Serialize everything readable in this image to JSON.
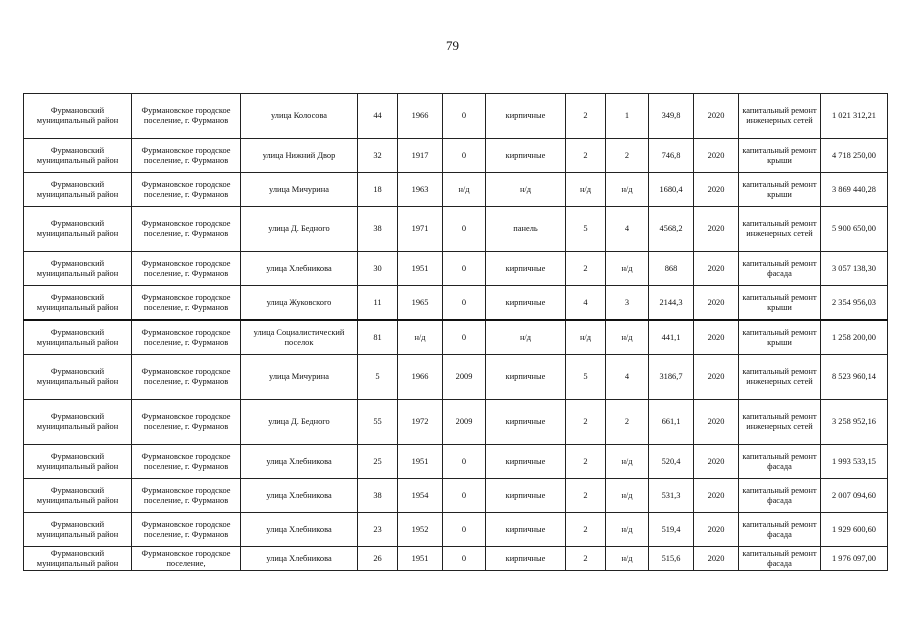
{
  "page_number": "79",
  "rows": [
    {
      "district": "Фурмановский муниципальный район",
      "settlement": "Фурмановское городское поселение, г. Фурманов",
      "street": "улица Колосова",
      "house": "44",
      "year_built": "1966",
      "year_renov": "0",
      "material": "кирпичные",
      "floors": "2",
      "entrances": "1",
      "area": "349,8",
      "plan_year": "2020",
      "work": "капитальный ремонт инженерных сетей",
      "cost": "1 021 312,21",
      "tall": true
    },
    {
      "district": "Фурмановский муниципальный район",
      "settlement": "Фурмановское городское поселение, г. Фурманов",
      "street": "улица Нижний Двор",
      "house": "32",
      "year_built": "1917",
      "year_renov": "0",
      "material": "кирпичные",
      "floors": "2",
      "entrances": "2",
      "area": "746,8",
      "plan_year": "2020",
      "work": "капитальный ремонт крыши",
      "cost": "4 718 250,00"
    },
    {
      "district": "Фурмановский муниципальный район",
      "settlement": "Фурмановское городское поселение, г. Фурманов",
      "street": "улица Мичурина",
      "house": "18",
      "year_built": "1963",
      "year_renov": "н/д",
      "material": "н/д",
      "floors": "н/д",
      "entrances": "н/д",
      "area": "1680,4",
      "plan_year": "2020",
      "work": "капитальный ремонт крыши",
      "cost": "3 869 440,28"
    },
    {
      "district": "Фурмановский муниципальный район",
      "settlement": "Фурмановское городское поселение, г. Фурманов",
      "street": "улица Д. Бедного",
      "house": "38",
      "year_built": "1971",
      "year_renov": "0",
      "material": "панель",
      "floors": "5",
      "entrances": "4",
      "area": "4568,2",
      "plan_year": "2020",
      "work": "капитальный ремонт инженерных сетей",
      "cost": "5 900 650,00",
      "tall": true
    },
    {
      "district": "Фурмановский муниципальный район",
      "settlement": "Фурмановское городское поселение, г. Фурманов",
      "street": "улица Хлебникова",
      "house": "30",
      "year_built": "1951",
      "year_renov": "0",
      "material": "кирпичные",
      "floors": "2",
      "entrances": "н/д",
      "area": "868",
      "plan_year": "2020",
      "work": "капитальный ремонт фасада",
      "cost": "3 057 138,30"
    },
    {
      "district": "Фурмановский муниципальный район",
      "settlement": "Фурмановское городское поселение, г. Фурманов",
      "street": "улица Жуковского",
      "house": "11",
      "year_built": "1965",
      "year_renov": "0",
      "material": "кирпичные",
      "floors": "4",
      "entrances": "3",
      "area": "2144,3",
      "plan_year": "2020",
      "work": "капитальный ремонт крыши",
      "cost": "2 354 956,03"
    },
    {
      "district": "Фурмановский муниципальный район",
      "settlement": "Фурмановское городское поселение, г. Фурманов",
      "street": "улица Социалистический поселок",
      "house": "81",
      "year_built": "н/д",
      "year_renov": "0",
      "material": "н/д",
      "floors": "н/д",
      "entrances": "н/д",
      "area": "441,1",
      "plan_year": "2020",
      "work": "капитальный ремонт крыши",
      "cost": "1 258 200,00",
      "thick": true
    },
    {
      "district": "Фурмановский муниципальный район",
      "settlement": "Фурмановское городское поселение, г. Фурманов",
      "street": "улица Мичурина",
      "house": "5",
      "year_built": "1966",
      "year_renov": "2009",
      "material": "кирпичные",
      "floors": "5",
      "entrances": "4",
      "area": "3186,7",
      "plan_year": "2020",
      "work": "капитальный ремонт инженерных сетей",
      "cost": "8 523 960,14",
      "tall": true
    },
    {
      "district": "Фурмановский муниципальный район",
      "settlement": "Фурмановское городское поселение, г. Фурманов",
      "street": "улица Д. Бедного",
      "house": "55",
      "year_built": "1972",
      "year_renov": "2009",
      "material": "кирпичные",
      "floors": "2",
      "entrances": "2",
      "area": "661,1",
      "plan_year": "2020",
      "work": "капитальный ремонт инженерных сетей",
      "cost": "3 258 952,16",
      "tall": true
    },
    {
      "district": "Фурмановский муниципальный район",
      "settlement": "Фурмановское городское поселение, г. Фурманов",
      "street": "улица Хлебникова",
      "house": "25",
      "year_built": "1951",
      "year_renov": "0",
      "material": "кирпичные",
      "floors": "2",
      "entrances": "н/д",
      "area": "520,4",
      "plan_year": "2020",
      "work": "капитальный ремонт фасада",
      "cost": "1 993 533,15"
    },
    {
      "district": "Фурмановский муниципальный район",
      "settlement": "Фурмановское городское поселение, г. Фурманов",
      "street": "улица Хлебникова",
      "house": "38",
      "year_built": "1954",
      "year_renov": "0",
      "material": "кирпичные",
      "floors": "2",
      "entrances": "н/д",
      "area": "531,3",
      "plan_year": "2020",
      "work": "капитальный ремонт фасада",
      "cost": "2 007 094,60"
    },
    {
      "district": "Фурмановский муниципальный район",
      "settlement": "Фурмановское городское поселение, г. Фурманов",
      "street": "улица Хлебникова",
      "house": "23",
      "year_built": "1952",
      "year_renov": "0",
      "material": "кирпичные",
      "floors": "2",
      "entrances": "н/д",
      "area": "519,4",
      "plan_year": "2020",
      "work": "капитальный ремонт фасада",
      "cost": "1 929 600,60"
    },
    {
      "district": "Фурмановский муниципальный район",
      "settlement": "Фурмановское городское поселение,",
      "street": "улица Хлебникова",
      "house": "26",
      "year_built": "1951",
      "year_renov": "0",
      "material": "кирпичные",
      "floors": "2",
      "entrances": "н/д",
      "area": "515,6",
      "plan_year": "2020",
      "work": "капитальный ремонт фасада",
      "cost": "1 976 097,00",
      "short": true
    }
  ]
}
